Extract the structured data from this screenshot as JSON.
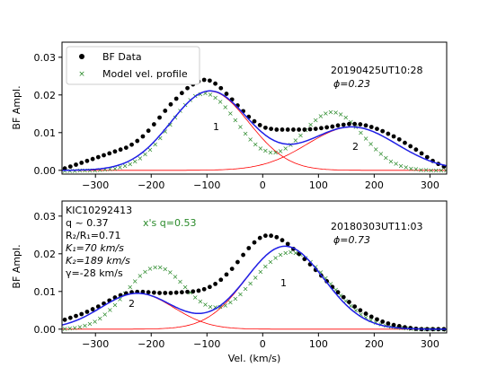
{
  "chart_data": [
    {
      "type": "scatter",
      "panel": "top",
      "ylabel": "BF Ampl.",
      "xlim": [
        -360,
        330
      ],
      "ylim": [
        -0.001,
        0.034
      ],
      "xticks": [
        "-300",
        "-200",
        "-100",
        "0",
        "100",
        "200",
        "300"
      ],
      "yticks": [
        "0.00",
        "0.01",
        "0.02",
        "0.03"
      ],
      "legend": {
        "placement": "top-left",
        "entries": [
          "BF Data",
          "Model vel. profile"
        ]
      },
      "annotations": {
        "date": "20190425UT10:28",
        "phase": "ϕ=0.23",
        "label1": "1",
        "label2": "2"
      },
      "colors": {
        "data": "#000000",
        "model": "#2a8a2a",
        "fit": "#1f1fe6",
        "components": "#ff0000"
      },
      "comp1": {
        "amp": 0.021,
        "center": -95,
        "sigma": 70
      },
      "comp2": {
        "amp": 0.0115,
        "center": 160,
        "sigma": 80
      },
      "model_comp1": {
        "amp": 0.0205,
        "center": -105,
        "sigma": 60
      },
      "model_comp2": {
        "amp": 0.0155,
        "center": 125,
        "sigma": 55
      },
      "data_x": [
        -355,
        -345,
        -335,
        -325,
        -315,
        -305,
        -295,
        -285,
        -275,
        -265,
        -255,
        -245,
        -235,
        -225,
        -215,
        -205,
        -195,
        -185,
        -175,
        -165,
        -155,
        -145,
        -135,
        -125,
        -115,
        -105,
        -95,
        -85,
        -75,
        -65,
        -55,
        -45,
        -35,
        -25,
        -15,
        -5,
        5,
        15,
        25,
        35,
        45,
        55,
        65,
        75,
        85,
        95,
        105,
        115,
        125,
        135,
        145,
        155,
        165,
        175,
        185,
        195,
        205,
        215,
        225,
        235,
        245,
        255,
        265,
        275,
        285,
        295,
        305,
        315,
        325
      ],
      "data_y": [
        0.0005,
        0.001,
        0.0015,
        0.002,
        0.0025,
        0.003,
        0.0035,
        0.004,
        0.0045,
        0.005,
        0.0055,
        0.006,
        0.0068,
        0.0078,
        0.009,
        0.0105,
        0.0122,
        0.014,
        0.0158,
        0.0175,
        0.019,
        0.0205,
        0.0218,
        0.0228,
        0.0236,
        0.024,
        0.0238,
        0.023,
        0.0218,
        0.0203,
        0.0188,
        0.0172,
        0.0157,
        0.0142,
        0.013,
        0.012,
        0.0113,
        0.011,
        0.0108,
        0.0108,
        0.0108,
        0.0108,
        0.0108,
        0.0108,
        0.0109,
        0.011,
        0.0112,
        0.0114,
        0.0116,
        0.0119,
        0.0121,
        0.0123,
        0.0123,
        0.0122,
        0.0119,
        0.0115,
        0.011,
        0.0104,
        0.0097,
        0.009,
        0.0082,
        0.0073,
        0.0064,
        0.0055,
        0.0045,
        0.0035,
        0.0025,
        0.0017,
        0.001
      ]
    },
    {
      "type": "scatter",
      "panel": "bottom",
      "xlabel": "Vel. (km/s)",
      "ylabel": "BF Ampl.",
      "xlim": [
        -360,
        330
      ],
      "ylim": [
        -0.001,
        0.034
      ],
      "xticks": [
        "-300",
        "-200",
        "-100",
        "0",
        "100",
        "200",
        "300"
      ],
      "yticks": [
        "0.00",
        "0.01",
        "0.02",
        "0.03"
      ],
      "annotations": {
        "date": "20180303UT11:03",
        "phase": "ϕ=0.73",
        "label1": "1",
        "label2": "2",
        "params": [
          "KIC10292413",
          "q ~ 0.37",
          "R₂/R₁=0.71",
          "K₁=70 km/s",
          "K₂=189 km/s",
          "γ=-28 km/s"
        ],
        "model_note": "x's  q=0.53"
      },
      "colors": {
        "data": "#000000",
        "model": "#2a8a2a",
        "fit": "#1f1fe6",
        "components": "#ff0000"
      },
      "comp1": {
        "amp": 0.022,
        "center": 40,
        "sigma": 70
      },
      "comp2": {
        "amp": 0.0095,
        "center": -225,
        "sigma": 65
      },
      "model_comp1": {
        "amp": 0.0205,
        "center": 50,
        "sigma": 70
      },
      "model_comp2": {
        "amp": 0.0165,
        "center": -190,
        "sigma": 55
      },
      "data_x": [
        -355,
        -345,
        -335,
        -325,
        -315,
        -305,
        -295,
        -285,
        -275,
        -265,
        -255,
        -245,
        -235,
        -225,
        -215,
        -205,
        -195,
        -185,
        -175,
        -165,
        -155,
        -145,
        -135,
        -125,
        -115,
        -105,
        -95,
        -85,
        -75,
        -65,
        -55,
        -45,
        -35,
        -25,
        -15,
        -5,
        5,
        15,
        25,
        35,
        45,
        55,
        65,
        75,
        85,
        95,
        105,
        115,
        125,
        135,
        145,
        155,
        165,
        175,
        185,
        195,
        205,
        215,
        225,
        235,
        245,
        255,
        265,
        275,
        285,
        295,
        305,
        315,
        325
      ],
      "data_y": [
        0.0025,
        0.003,
        0.0035,
        0.004,
        0.0046,
        0.0053,
        0.006,
        0.0068,
        0.0076,
        0.0084,
        0.009,
        0.0095,
        0.0098,
        0.0099,
        0.0099,
        0.0098,
        0.0097,
        0.0096,
        0.0096,
        0.0096,
        0.0097,
        0.0098,
        0.0099,
        0.01,
        0.0102,
        0.0106,
        0.0112,
        0.012,
        0.0131,
        0.0145,
        0.016,
        0.0178,
        0.0197,
        0.0215,
        0.023,
        0.0242,
        0.0248,
        0.0248,
        0.0244,
        0.0236,
        0.0226,
        0.0213,
        0.02,
        0.0186,
        0.0172,
        0.0157,
        0.0142,
        0.0127,
        0.0112,
        0.0098,
        0.0085,
        0.0072,
        0.006,
        0.005,
        0.0041,
        0.0033,
        0.0026,
        0.002,
        0.0015,
        0.0011,
        0.0008,
        0.0005,
        0.0003,
        0.0001,
        0.0,
        0.0,
        0.0,
        0.0,
        0.0
      ]
    }
  ]
}
